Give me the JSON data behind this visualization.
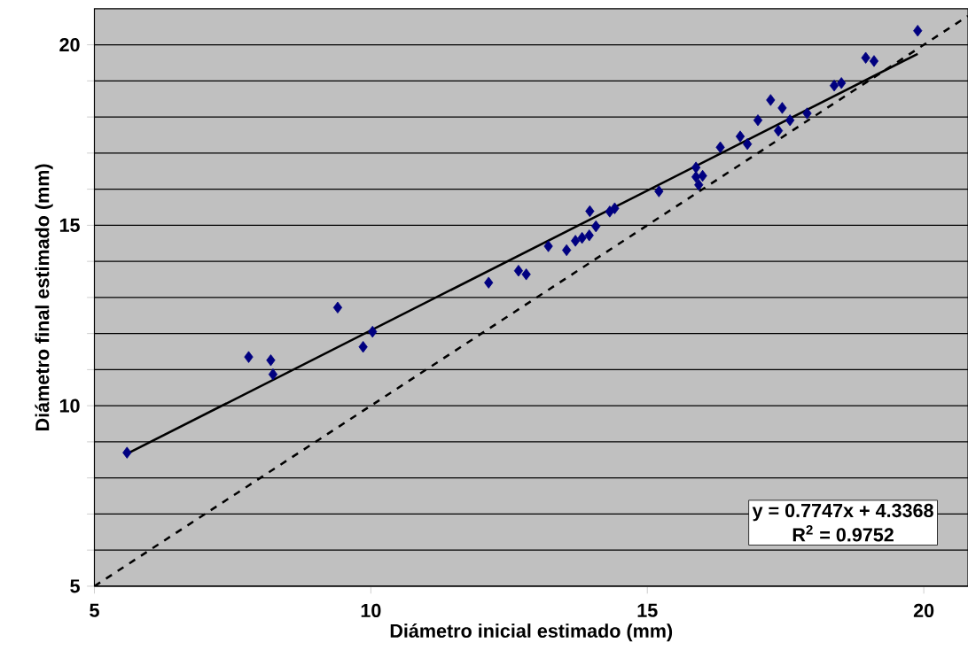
{
  "chart_data": {
    "type": "scatter",
    "xlabel": "Diámetro inicial estimado (mm)",
    "ylabel": "Diámetro final estimado (mm)",
    "xlim": [
      5,
      20.8
    ],
    "ylim": [
      5,
      21
    ],
    "xticks": [
      5,
      10,
      15,
      20
    ],
    "yticks": [
      5,
      {
        "value": 6,
        "label": null
      },
      {
        "value": 7,
        "label": null
      },
      {
        "value": 8,
        "label": null
      },
      {
        "value": 9,
        "label": null
      },
      10,
      {
        "value": 11,
        "label": null
      },
      {
        "value": 12,
        "label": null
      },
      {
        "value": 13,
        "label": null
      },
      {
        "value": 14,
        "label": null
      },
      15,
      {
        "value": 16,
        "label": null
      },
      {
        "value": 17,
        "label": null
      },
      {
        "value": 18,
        "label": null
      },
      {
        "value": 19,
        "label": null
      },
      20
    ],
    "grid": "y",
    "annotations": [
      "y = 0.7747x + 4.3368",
      "R$^{2}$ = 0.9752"
    ],
    "series": [
      {
        "color": "#000080",
        "marker": "diamond",
        "x": [
          5.59,
          7.79,
          8.19,
          8.23,
          9.4,
          9.86,
          10.03,
          12.13,
          12.67,
          12.81,
          13.21,
          13.54,
          13.7,
          13.82,
          13.95,
          14.07,
          13.96,
          14.32,
          14.41,
          15.21,
          15.88,
          15.88,
          16.0,
          15.93,
          16.32,
          16.68,
          16.81,
          17.0,
          17.23,
          17.44,
          17.37,
          17.58,
          17.89,
          18.38,
          18.51,
          18.95,
          19.1,
          19.89
        ],
        "values": [
          8.7,
          11.35,
          11.26,
          10.87,
          12.72,
          11.63,
          12.05,
          13.41,
          13.74,
          13.64,
          14.42,
          14.31,
          14.57,
          14.65,
          14.72,
          14.97,
          15.39,
          15.38,
          15.47,
          15.94,
          16.6,
          16.34,
          16.37,
          16.12,
          17.16,
          17.46,
          17.25,
          17.91,
          18.47,
          18.25,
          17.62,
          17.91,
          18.1,
          18.87,
          18.94,
          19.64,
          19.55,
          20.39
        ]
      },
      {
        "type": "line",
        "color": "#000000",
        "line_style": "solid",
        "marker": "none",
        "x": [
          5.59,
          19.89
        ],
        "values": [
          8.67,
          19.75
        ]
      },
      {
        "type": "line",
        "color": "#000000",
        "line_style": "dashed",
        "marker": "none",
        "x": [
          5,
          20.8
        ],
        "values": [
          5,
          20.8
        ]
      }
    ]
  }
}
